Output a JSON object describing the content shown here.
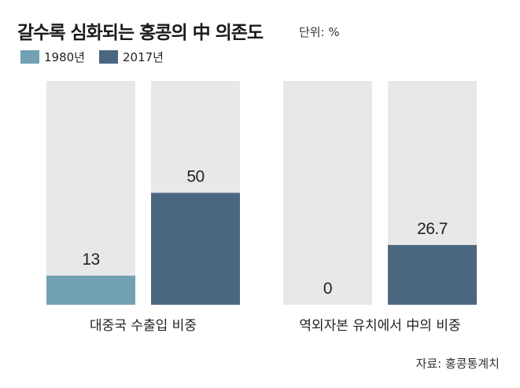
{
  "title": "갈수록 심화되는 홍콩의 中 의존도",
  "unit": "단위: %",
  "source": "자료: 홍콩통계치",
  "colors": {
    "series_1980": "#71a1b3",
    "series_2017": "#4b6780",
    "background": "#e8e8e8"
  },
  "chart_data": {
    "type": "bar",
    "title": "갈수록 심화되는 홍콩의 中 의존도",
    "unit": "%",
    "categories": [
      "대중국 수출입 비중",
      "역외자본 유치에서 中의 비중"
    ],
    "series": [
      {
        "name": "1980년",
        "values": [
          13,
          0
        ]
      },
      {
        "name": "2017년",
        "values": [
          50,
          26.7
        ]
      }
    ],
    "value_labels": [
      [
        "13",
        "0"
      ],
      [
        "50",
        "26.7"
      ]
    ],
    "ylim": [
      0,
      100
    ],
    "grid": false,
    "legend": "top-left"
  }
}
